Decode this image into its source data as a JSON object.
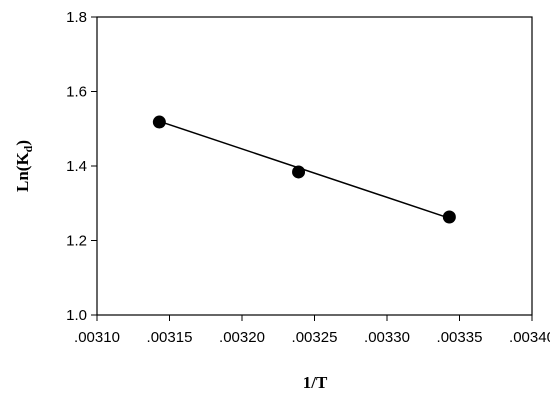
{
  "chart_data": {
    "type": "scatter",
    "x_label": "1/T",
    "y_label": {
      "main": "Ln(K",
      "subscript": "d",
      "suffix": ")"
    },
    "x": [
      0.003143,
      0.003239,
      0.003343
    ],
    "series": [
      {
        "values": [
          1.518,
          1.384,
          1.263
        ],
        "color": "#000000"
      }
    ],
    "trendline": {
      "x": [
        0.003143,
        0.003343
      ],
      "values": [
        1.52,
        1.26
      ],
      "color": "#000000"
    },
    "xlim": [
      0.0031,
      0.0034
    ],
    "xticks": [
      {
        "value": 0.0031,
        "label": ".00310"
      },
      {
        "value": 0.00315,
        "label": ".00315"
      },
      {
        "value": 0.0032,
        "label": ".00320"
      },
      {
        "value": 0.00325,
        "label": ".00325"
      },
      {
        "value": 0.0033,
        "label": ".00330"
      },
      {
        "value": 0.00335,
        "label": ".00335"
      },
      {
        "value": 0.0034,
        "label": ".00340"
      }
    ],
    "ylim": [
      1.0,
      1.8
    ],
    "yticks": [
      {
        "value": 1.0,
        "label": "1.0"
      },
      1.2,
      1.4,
      1.6,
      1.8
    ],
    "grid": false
  }
}
